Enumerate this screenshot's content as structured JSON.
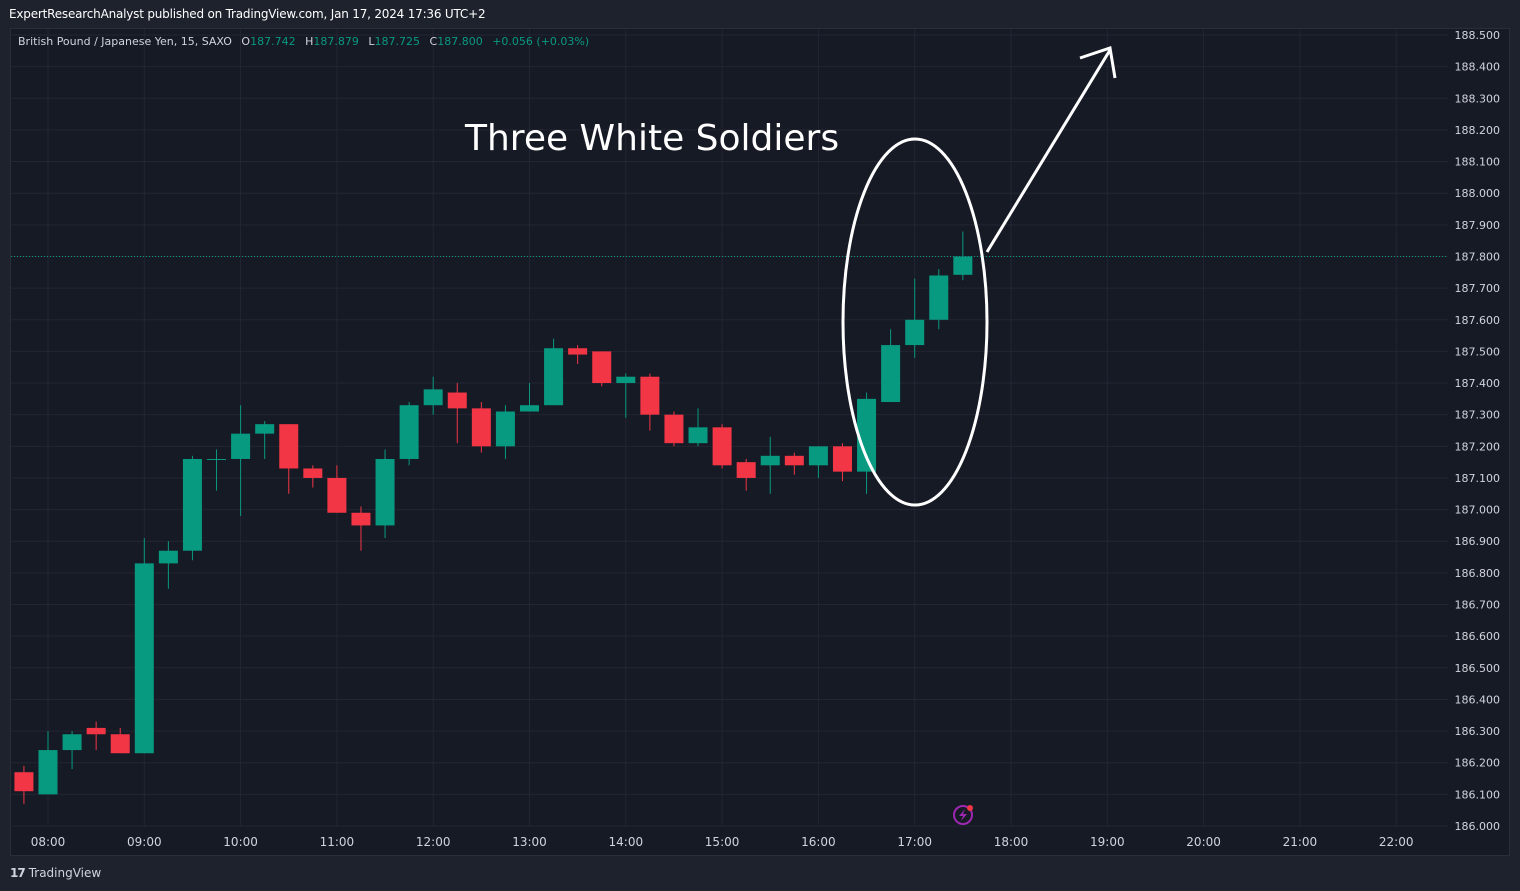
{
  "header": {
    "published_text": "ExpertResearchAnalyst published on TradingView.com, Jan 17, 2024 17:36 UTC+2"
  },
  "legend": {
    "symbol": "British Pound / Japanese Yen, 15, SAXO",
    "open_label": "O",
    "open_value": "187.742",
    "high_label": "H",
    "high_value": "187.879",
    "low_label": "L",
    "low_value": "187.725",
    "close_label": "C",
    "close_value": "187.800",
    "change": "+0.056 (+0.03%)"
  },
  "footer": {
    "logo_mark": "17",
    "brand": "TradingView"
  },
  "colors": {
    "up": "#089981",
    "down": "#f23645",
    "background": "#161a25",
    "grid": "#232632",
    "annotation": "#ffffff"
  },
  "chart_data": {
    "type": "candlestick",
    "ylim": [
      186.0,
      188.5
    ],
    "y_ticks": [
      "188.500",
      "188.400",
      "188.300",
      "188.200",
      "188.100",
      "188.000",
      "187.900",
      "187.800",
      "187.700",
      "187.600",
      "187.500",
      "187.400",
      "187.300",
      "187.200",
      "187.100",
      "187.000",
      "186.900",
      "186.800",
      "186.700",
      "186.600",
      "186.500",
      "186.400",
      "186.300",
      "186.200",
      "186.100",
      "186.000"
    ],
    "x_ticks": [
      "08:00",
      "09:00",
      "10:00",
      "11:00",
      "12:00",
      "13:00",
      "14:00",
      "15:00",
      "16:00",
      "17:00",
      "18:00",
      "19:00",
      "20:00",
      "21:00",
      "22:00"
    ],
    "x_tick_hours": [
      8,
      9,
      10,
      11,
      12,
      13,
      14,
      15,
      16,
      17,
      18,
      19,
      20,
      21,
      22
    ],
    "x_range_hours": [
      7.75,
      22.6
    ],
    "current_price": 187.8,
    "annotation_text": "Three White Soldiers",
    "candles": [
      {
        "t": 7.75,
        "o": 186.17,
        "h": 186.19,
        "l": 186.07,
        "c": 186.11
      },
      {
        "t": 8.0,
        "o": 186.1,
        "h": 186.3,
        "l": 186.1,
        "c": 186.24
      },
      {
        "t": 8.25,
        "o": 186.24,
        "h": 186.3,
        "l": 186.18,
        "c": 186.29
      },
      {
        "t": 8.5,
        "o": 186.31,
        "h": 186.33,
        "l": 186.24,
        "c": 186.29
      },
      {
        "t": 8.75,
        "o": 186.29,
        "h": 186.31,
        "l": 186.23,
        "c": 186.23
      },
      {
        "t": 9.0,
        "o": 186.23,
        "h": 186.91,
        "l": 186.23,
        "c": 186.83
      },
      {
        "t": 9.25,
        "o": 186.83,
        "h": 186.9,
        "l": 186.75,
        "c": 186.87
      },
      {
        "t": 9.5,
        "o": 186.87,
        "h": 187.17,
        "l": 186.84,
        "c": 187.16
      },
      {
        "t": 9.75,
        "o": 187.16,
        "h": 187.19,
        "l": 187.06,
        "c": 187.16
      },
      {
        "t": 10.0,
        "o": 187.16,
        "h": 187.33,
        "l": 186.98,
        "c": 187.24
      },
      {
        "t": 10.25,
        "o": 187.24,
        "h": 187.28,
        "l": 187.16,
        "c": 187.27
      },
      {
        "t": 10.5,
        "o": 187.27,
        "h": 187.27,
        "l": 187.05,
        "c": 187.13
      },
      {
        "t": 10.75,
        "o": 187.13,
        "h": 187.14,
        "l": 187.07,
        "c": 187.1
      },
      {
        "t": 11.0,
        "o": 187.1,
        "h": 187.14,
        "l": 186.99,
        "c": 186.99
      },
      {
        "t": 11.25,
        "o": 186.99,
        "h": 187.01,
        "l": 186.87,
        "c": 186.95
      },
      {
        "t": 11.5,
        "o": 186.95,
        "h": 187.19,
        "l": 186.91,
        "c": 187.16
      },
      {
        "t": 11.75,
        "o": 187.16,
        "h": 187.34,
        "l": 187.14,
        "c": 187.33
      },
      {
        "t": 12.0,
        "o": 187.33,
        "h": 187.42,
        "l": 187.3,
        "c": 187.38
      },
      {
        "t": 12.25,
        "o": 187.37,
        "h": 187.4,
        "l": 187.21,
        "c": 187.32
      },
      {
        "t": 12.5,
        "o": 187.32,
        "h": 187.34,
        "l": 187.18,
        "c": 187.2
      },
      {
        "t": 12.75,
        "o": 187.2,
        "h": 187.33,
        "l": 187.16,
        "c": 187.31
      },
      {
        "t": 13.0,
        "o": 187.31,
        "h": 187.4,
        "l": 187.31,
        "c": 187.33
      },
      {
        "t": 13.25,
        "o": 187.33,
        "h": 187.54,
        "l": 187.33,
        "c": 187.51
      },
      {
        "t": 13.5,
        "o": 187.51,
        "h": 187.52,
        "l": 187.46,
        "c": 187.49
      },
      {
        "t": 13.75,
        "o": 187.5,
        "h": 187.5,
        "l": 187.39,
        "c": 187.4
      },
      {
        "t": 14.0,
        "o": 187.4,
        "h": 187.43,
        "l": 187.29,
        "c": 187.42
      },
      {
        "t": 14.25,
        "o": 187.42,
        "h": 187.43,
        "l": 187.25,
        "c": 187.3
      },
      {
        "t": 14.5,
        "o": 187.3,
        "h": 187.31,
        "l": 187.2,
        "c": 187.21
      },
      {
        "t": 14.75,
        "o": 187.21,
        "h": 187.32,
        "l": 187.2,
        "c": 187.26
      },
      {
        "t": 15.0,
        "o": 187.26,
        "h": 187.27,
        "l": 187.13,
        "c": 187.14
      },
      {
        "t": 15.25,
        "o": 187.15,
        "h": 187.16,
        "l": 187.06,
        "c": 187.1
      },
      {
        "t": 15.5,
        "o": 187.14,
        "h": 187.23,
        "l": 187.05,
        "c": 187.17
      },
      {
        "t": 15.75,
        "o": 187.17,
        "h": 187.18,
        "l": 187.11,
        "c": 187.14
      },
      {
        "t": 16.0,
        "o": 187.14,
        "h": 187.2,
        "l": 187.1,
        "c": 187.2
      },
      {
        "t": 16.25,
        "o": 187.2,
        "h": 187.21,
        "l": 187.09,
        "c": 187.12
      },
      {
        "t": 16.5,
        "o": 187.12,
        "h": 187.37,
        "l": 187.05,
        "c": 187.35
      },
      {
        "t": 16.75,
        "o": 187.34,
        "h": 187.57,
        "l": 187.34,
        "c": 187.52
      },
      {
        "t": 17.0,
        "o": 187.52,
        "h": 187.73,
        "l": 187.48,
        "c": 187.6
      },
      {
        "t": 17.25,
        "o": 187.6,
        "h": 187.76,
        "l": 187.57,
        "c": 187.74
      },
      {
        "t": 17.5,
        "o": 187.742,
        "h": 187.879,
        "l": 187.725,
        "c": 187.8
      }
    ]
  }
}
